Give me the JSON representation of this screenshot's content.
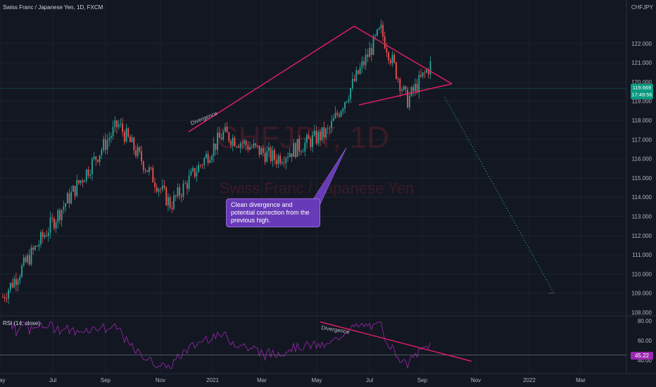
{
  "header": {
    "title": "Swiss Franc / Japanese Yen, 1D, FXCM",
    "watermark_symbol": "CHFJPY, 1D",
    "watermark_name": "Swiss Franc / Japanese Yen"
  },
  "colors": {
    "background": "#131722",
    "up_candle": "#26a69a",
    "down_candle": "#ef5350",
    "trendline": "#e91e63",
    "rsi_line": "#9c27b0",
    "projection": "#26c6da",
    "callout": "#673ab7"
  },
  "chart_data": [
    {
      "type": "candlestick",
      "title": "Swiss Franc / Japanese Yen, 1D, FXCM",
      "price_axis_label": "CHFJPY",
      "ylim": [
        108.0,
        123.0
      ],
      "y_ticks": [
        "122.000",
        "121.000",
        "120.000",
        "119.000",
        "118.000",
        "117.000",
        "116.000",
        "115.000",
        "114.000",
        "113.000",
        "112.000",
        "111.000",
        "110.000",
        "109.000",
        "108.000"
      ],
      "x_ticks": [
        "May",
        "Jul",
        "Sep",
        "Nov",
        "2021",
        "Mar",
        "May",
        "Jul",
        "Sep",
        "Nov",
        "2022",
        "Mar"
      ],
      "current_price": "119.669",
      "countdown": "17:49:56",
      "key_points": [
        {
          "date": "May 2020",
          "price": 108.8
        },
        {
          "date": "Aug 2020",
          "price": 117.8
        },
        {
          "date": "Oct 2020",
          "price": 113.6
        },
        {
          "date": "Dec 2020",
          "price": 117.3
        },
        {
          "date": "Feb 2021",
          "price": 116.0
        },
        {
          "date": "Apr 2021",
          "price": 117.4
        },
        {
          "date": "Jun 2021",
          "price": 122.7
        },
        {
          "date": "Jul 2021",
          "price": 119.0
        },
        {
          "date": "Aug 2021",
          "price": 121.1
        },
        {
          "date": "Sep 2021",
          "price": 119.7
        }
      ],
      "trendlines": [
        {
          "label": "Divergence",
          "from": {
            "date": "Dec 2020",
            "price": 117.4
          },
          "to": {
            "date": "Jun 2021",
            "price": 122.9
          }
        },
        {
          "from": {
            "date": "Jun 2021",
            "price": 122.9
          },
          "to": {
            "date": "Sep 2021",
            "price": 119.9
          }
        },
        {
          "from": {
            "date": "Jun 2021",
            "price": 118.8
          },
          "to": {
            "date": "Sep 2021",
            "price": 119.9
          }
        }
      ],
      "projection": {
        "from": {
          "date": "Sep 2021",
          "price": 119.2
        },
        "to": {
          "date": "Feb 2022",
          "price": 109.0
        }
      },
      "annotation": "Clean divergence and potential correction from the previous high."
    },
    {
      "type": "line",
      "title": "RSI (14, close)",
      "ylim": [
        30,
        80
      ],
      "y_ticks": [
        "80.00",
        "60.00",
        "40.00"
      ],
      "current_value": "45.22",
      "trendlines": [
        {
          "label": "Divergence",
          "from": {
            "date": "May 2021",
            "value": 79
          },
          "to": {
            "date": "Nov 2021",
            "value": 39
          }
        }
      ]
    }
  ]
}
